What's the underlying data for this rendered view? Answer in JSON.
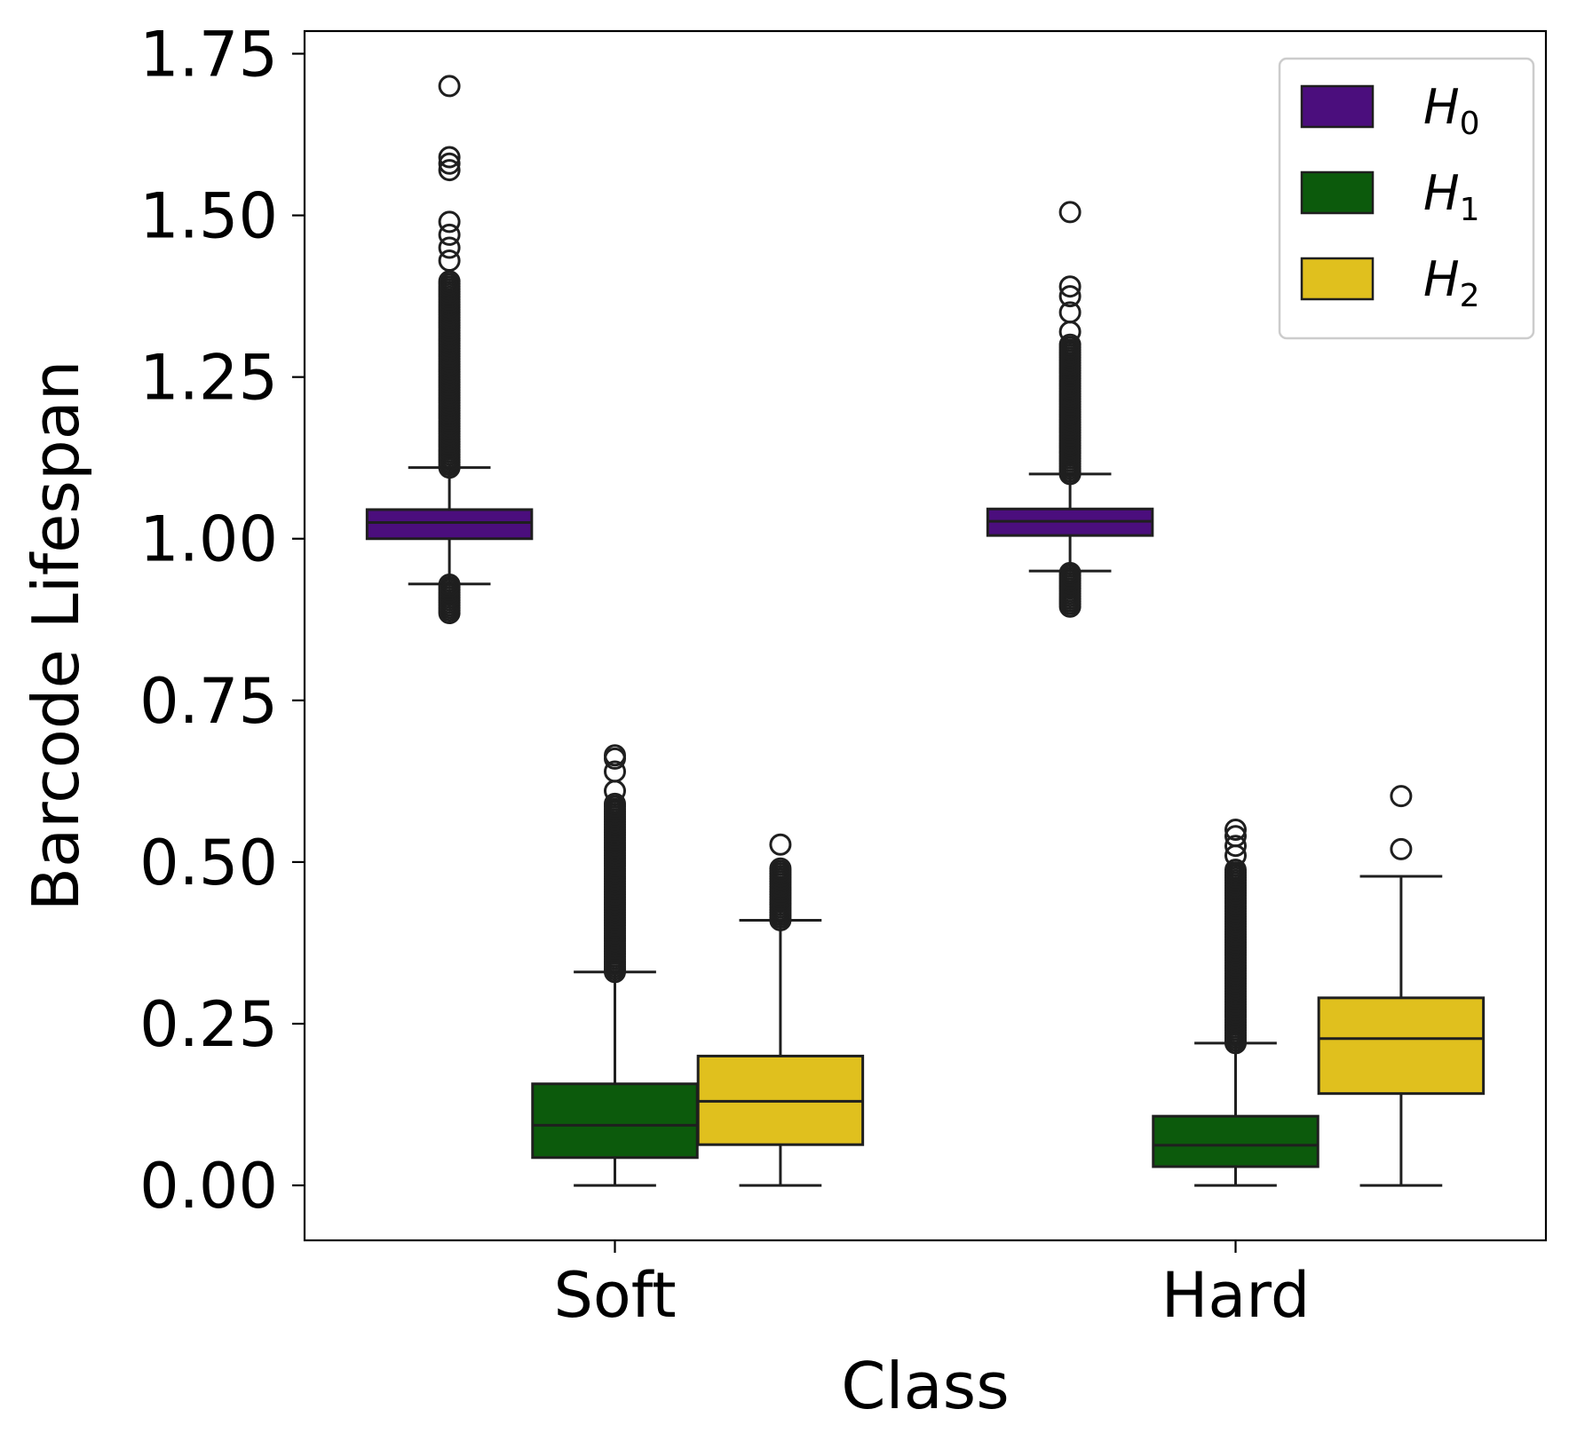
{
  "chart_data": {
    "type": "box",
    "xlabel": "Class",
    "ylabel": "Barcode Lifespan",
    "categories": [
      "Soft",
      "Hard"
    ],
    "ylim": [
      -0.085,
      1.785
    ],
    "yticks": [
      "0.00",
      "0.25",
      "0.50",
      "0.75",
      "1.00",
      "1.25",
      "1.50",
      "1.75"
    ],
    "grid": false,
    "legend_position": "top-right",
    "series": [
      {
        "name": "H0",
        "legend_main": "H",
        "legend_sub": "0",
        "color": "#4b0e7d",
        "boxes": [
          {
            "category": "Soft",
            "whisker_low": 0.93,
            "q1": 1.0,
            "median": 1.025,
            "q3": 1.045,
            "whisker_high": 1.11,
            "outliers_high": {
              "min": 1.11,
              "max": 1.4
            },
            "outliers_high_sparse": [
              1.43,
              1.45,
              1.47,
              1.49,
              1.57,
              1.58,
              1.59,
              1.7
            ],
            "outliers_low": {
              "min": 0.885,
              "max": 0.93
            }
          },
          {
            "category": "Hard",
            "whisker_low": 0.95,
            "q1": 1.005,
            "median": 1.027,
            "q3": 1.046,
            "whisker_high": 1.1,
            "outliers_high": {
              "min": 1.1,
              "max": 1.3
            },
            "outliers_high_sparse": [
              1.32,
              1.35,
              1.375,
              1.39,
              1.505
            ],
            "outliers_low": {
              "min": 0.895,
              "max": 0.95
            }
          }
        ]
      },
      {
        "name": "H1",
        "legend_main": "H",
        "legend_sub": "1",
        "color": "#0c5a0c",
        "boxes": [
          {
            "category": "Soft",
            "whisker_low": 0.0,
            "q1": 0.043,
            "median": 0.093,
            "q3": 0.157,
            "whisker_high": 0.33,
            "outliers_high": {
              "min": 0.33,
              "max": 0.59
            },
            "outliers_high_sparse": [
              0.61,
              0.64,
              0.66,
              0.665
            ],
            "outliers_low": null
          },
          {
            "category": "Hard",
            "whisker_low": 0.0,
            "q1": 0.029,
            "median": 0.062,
            "q3": 0.107,
            "whisker_high": 0.22,
            "outliers_high": {
              "min": 0.22,
              "max": 0.49
            },
            "outliers_high_sparse": [
              0.51,
              0.525,
              0.54,
              0.55
            ],
            "outliers_low": null
          }
        ]
      },
      {
        "name": "H2",
        "legend_main": "H",
        "legend_sub": "2",
        "color": "#e0c01e",
        "boxes": [
          {
            "category": "Soft",
            "whisker_low": 0.0,
            "q1": 0.063,
            "median": 0.13,
            "q3": 0.2,
            "whisker_high": 0.41,
            "outliers_high": {
              "min": 0.41,
              "max": 0.49
            },
            "outliers_high_sparse": [
              0.527
            ],
            "outliers_low": null
          },
          {
            "category": "Hard",
            "whisker_low": 0.0,
            "q1": 0.142,
            "median": 0.227,
            "q3": 0.29,
            "whisker_high": 0.478,
            "outliers_high": null,
            "outliers_high_sparse": [
              0.52,
              0.602
            ],
            "outliers_low": null
          }
        ]
      }
    ]
  }
}
